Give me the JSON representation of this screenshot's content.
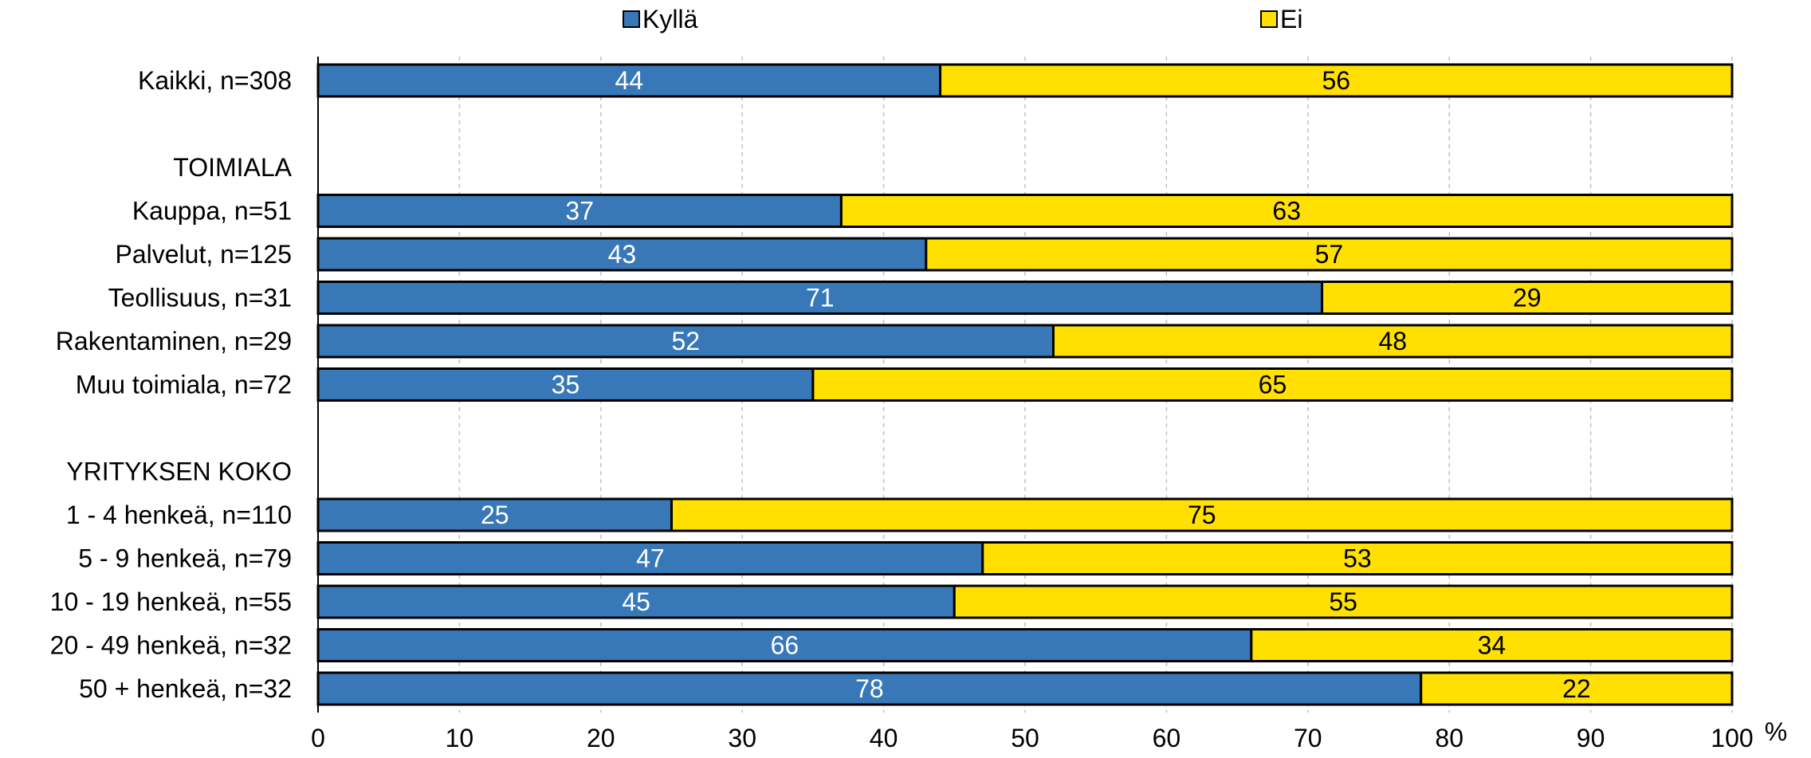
{
  "chart_data": {
    "type": "bar",
    "orientation": "horizontal",
    "stacked": true,
    "x_unit_label": "%",
    "xlim": [
      0,
      100
    ],
    "x_ticks": [
      "0",
      "10",
      "20",
      "30",
      "40",
      "50",
      "60",
      "70",
      "80",
      "90",
      "100"
    ],
    "grid": "vertical dashed",
    "legend_position": "top",
    "series": [
      {
        "name": "Kyllä",
        "color": "#3878B8",
        "label_color": "#ffffff"
      },
      {
        "name": "Ei",
        "color": "#FFE000",
        "label_color": "#000000"
      }
    ],
    "rows": [
      {
        "label": "Kaikki, n=308",
        "values": [
          44,
          56
        ]
      },
      {
        "label": "",
        "values": null
      },
      {
        "label": "TOIMIALA",
        "values": null
      },
      {
        "label": "Kauppa, n=51",
        "values": [
          37,
          63
        ]
      },
      {
        "label": "Palvelut, n=125",
        "values": [
          43,
          57
        ]
      },
      {
        "label": "Teollisuus, n=31",
        "values": [
          71,
          29
        ]
      },
      {
        "label": "Rakentaminen, n=29",
        "values": [
          52,
          48
        ]
      },
      {
        "label": "Muu toimiala, n=72",
        "values": [
          35,
          65
        ]
      },
      {
        "label": "",
        "values": null
      },
      {
        "label": "YRITYKSEN KOKO",
        "values": null
      },
      {
        "label": "1 - 4 henkeä, n=110",
        "values": [
          25,
          75
        ]
      },
      {
        "label": "5 - 9 henkeä, n=79",
        "values": [
          47,
          53
        ]
      },
      {
        "label": "10 - 19 henkeä, n=55",
        "values": [
          45,
          55
        ]
      },
      {
        "label": "20 - 49 henkeä, n=32",
        "values": [
          66,
          34
        ]
      },
      {
        "label": "50 + henkeä, n=32",
        "values": [
          78,
          22
        ]
      }
    ]
  }
}
